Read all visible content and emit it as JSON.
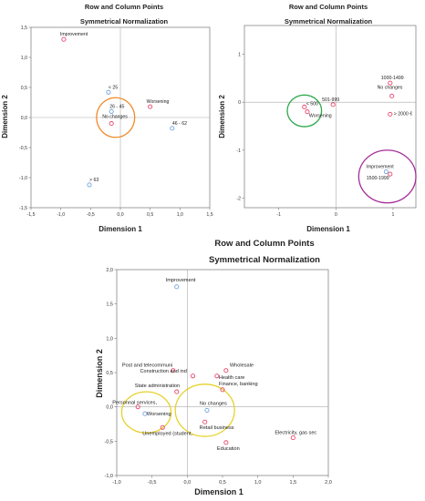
{
  "chart_data": [
    {
      "type": "scatter",
      "title": "Row and Column Points",
      "subtitle": "Symmetrical Normalization",
      "xlabel": "Dimension 1",
      "ylabel": "Dimension 2",
      "xlim": [
        -1.5,
        1.5
      ],
      "ylim": [
        -1.5,
        1.5
      ],
      "xticks": [
        "-1,5",
        "-1,0",
        "-0,5",
        "0,0",
        "0,5",
        "1,0",
        "1,5"
      ],
      "yticks": [
        "-1,5",
        "-1,0",
        "-0,5",
        "0,0",
        "0,5",
        "1,0",
        "1,5"
      ],
      "grid": "reference lines at 0",
      "series": [
        {
          "name": "",
          "color": "#e8446a",
          "points": [
            {
              "label": "Improvement",
              "x": -0.95,
              "y": 1.3
            },
            {
              "label": "Worsening",
              "x": 0.5,
              "y": 0.18
            },
            {
              "label": "No changes",
              "x": -0.15,
              "y": -0.1
            }
          ]
        },
        {
          "name": "",
          "color": "#6fa3e0",
          "points": [
            {
              "label": "< 25",
              "x": -0.2,
              "y": 0.42
            },
            {
              "label": "26 - 45",
              "x": -0.15,
              "y": 0.1
            },
            {
              "label": "46 - 62",
              "x": 0.87,
              "y": -0.18
            },
            {
              "label": "> 63",
              "x": -0.52,
              "y": -1.12
            }
          ]
        }
      ],
      "annotations": [
        {
          "type": "ellipse",
          "x": -0.08,
          "y": 0.0,
          "rx": 0.32,
          "ry": 0.33,
          "color": "#f08a2a"
        }
      ]
    },
    {
      "type": "scatter",
      "title": "Row and Column Points",
      "subtitle": "Symmetrical Normalization",
      "xlabel": "Dimension 1",
      "ylabel": "Dimension 2",
      "xlim": [
        -1.6,
        1.4
      ],
      "ylim": [
        -2.2,
        1.6
      ],
      "xticks": [
        "-1",
        "0",
        "1"
      ],
      "yticks": [
        "-2",
        "-1",
        "0",
        "1"
      ],
      "grid": "reference lines at 0",
      "series": [
        {
          "name": "",
          "color": "#e8446a",
          "points": [
            {
              "label": "1000-1499",
              "x": 0.95,
              "y": 0.4
            },
            {
              "label": "No changes",
              "x": 0.98,
              "y": 0.13
            },
            {
              "label": "> 2000 €",
              "x": 0.95,
              "y": -0.25
            },
            {
              "label": "501-999",
              "x": -0.05,
              "y": -0.05
            },
            {
              "label": "< 500",
              "x": -0.55,
              "y": -0.1
            },
            {
              "label": "Worsening",
              "x": -0.5,
              "y": -0.2
            },
            {
              "label": "1500-1999",
              "x": 0.95,
              "y": -1.5
            }
          ]
        },
        {
          "name": "",
          "color": "#6fa3e0",
          "points": [
            {
              "label": "Improvement",
              "x": 0.88,
              "y": -1.45
            }
          ]
        }
      ],
      "annotations": [
        {
          "type": "ellipse",
          "x": -0.55,
          "y": -0.18,
          "rx": 0.3,
          "ry": 0.33,
          "color": "#2da84a"
        },
        {
          "type": "ellipse",
          "x": 0.9,
          "y": -1.55,
          "rx": 0.5,
          "ry": 0.55,
          "color": "#a52d9a"
        }
      ]
    },
    {
      "type": "scatter",
      "title": "Row and Column Points",
      "subtitle": "Symmetrical Normalization",
      "xlabel": "Dimension 1",
      "ylabel": "Dimension 2",
      "xlim": [
        -1.0,
        2.0
      ],
      "ylim": [
        -1.0,
        2.0
      ],
      "xticks": [
        "-1,0",
        "-0,5",
        "0,0",
        "0,5",
        "1,0",
        "1,5",
        "2,0"
      ],
      "yticks": [
        "-1,0",
        "-0,5",
        "0,0",
        "0,5",
        "1,0",
        "1,5",
        "2,0"
      ],
      "grid": "reference lines at 0",
      "series": [
        {
          "name": "",
          "color": "#e8446a",
          "points": [
            {
              "label": "Post and telecommuni",
              "x": -0.2,
              "y": 0.53
            },
            {
              "label": "Wholesale",
              "x": 0.55,
              "y": 0.53
            },
            {
              "label": "Construction and ind",
              "x": 0.08,
              "y": 0.45
            },
            {
              "label": "Health care",
              "x": 0.42,
              "y": 0.45
            },
            {
              "label": "Finance, banking",
              "x": 0.5,
              "y": 0.25
            },
            {
              "label": "State administration",
              "x": -0.15,
              "y": 0.22
            },
            {
              "label": "Personnal services,",
              "x": -0.7,
              "y": 0.0
            },
            {
              "label": "Retail business",
              "x": 0.25,
              "y": -0.22
            },
            {
              "label": "Unemployed (student,",
              "x": -0.35,
              "y": -0.3
            },
            {
              "label": "Education",
              "x": 0.55,
              "y": -0.52
            },
            {
              "label": "Electricity, gas sec",
              "x": 1.5,
              "y": -0.45
            }
          ]
        },
        {
          "name": "",
          "color": "#6fa3e0",
          "points": [
            {
              "label": "Improvement",
              "x": -0.15,
              "y": 1.75
            },
            {
              "label": "No changes",
              "x": 0.28,
              "y": -0.05
            },
            {
              "label": "Worsening",
              "x": -0.6,
              "y": -0.1
            }
          ]
        }
      ],
      "annotations": [
        {
          "type": "ellipse",
          "x": -0.58,
          "y": -0.08,
          "rx": 0.35,
          "ry": 0.3,
          "color": "#e6d12a"
        },
        {
          "type": "ellipse",
          "x": 0.25,
          "y": -0.05,
          "rx": 0.42,
          "ry": 0.38,
          "color": "#e6d12a"
        }
      ]
    }
  ]
}
